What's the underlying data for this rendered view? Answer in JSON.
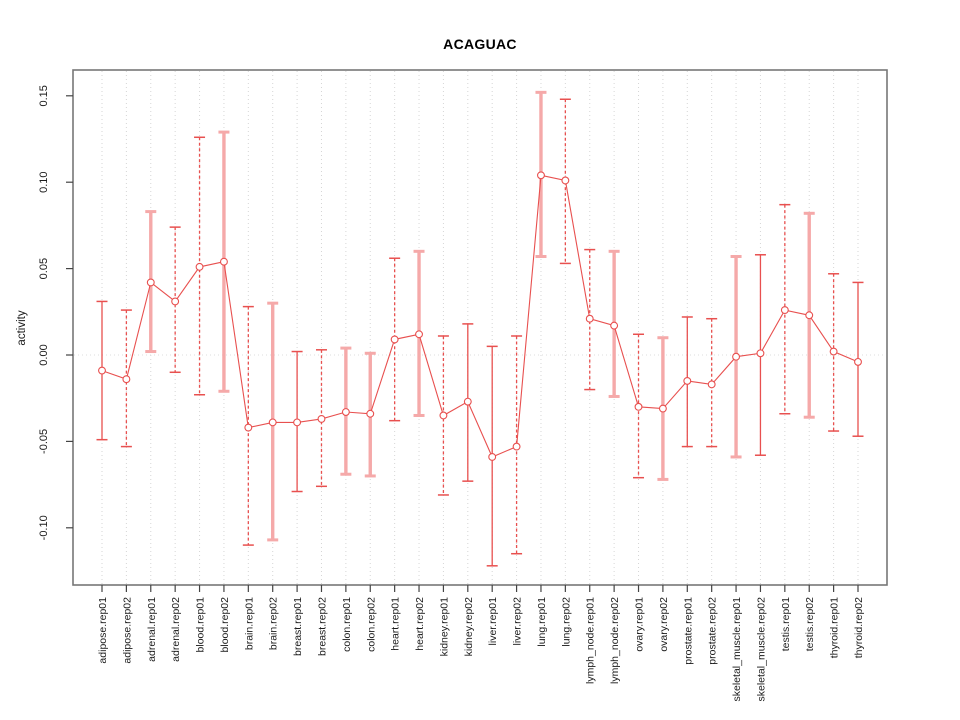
{
  "chart_data": {
    "type": "line",
    "title": "ACAGUAC",
    "ylabel": "activity",
    "xlabel": "",
    "legend": "none",
    "grid": "dotted vertical line per category, dotted horizontal line at 0",
    "y_ticks": [
      "0.15",
      "0.10",
      "0.05",
      "0.00",
      "-0.05",
      "-0.10"
    ],
    "ylim": [
      -0.133,
      0.165
    ],
    "categories": [
      "adipose.rep01",
      "adipose.rep02",
      "adrenal.rep01",
      "adrenal.rep02",
      "blood.rep01",
      "blood.rep02",
      "brain.rep01",
      "brain.rep02",
      "breast.rep01",
      "breast.rep02",
      "colon.rep01",
      "colon.rep02",
      "heart.rep01",
      "heart.rep02",
      "kidney.rep01",
      "kidney.rep02",
      "liver.rep01",
      "liver.rep02",
      "lung.rep01",
      "lung.rep02",
      "lymph_node.rep01",
      "lymph_node.rep02",
      "ovary.rep01",
      "ovary.rep02",
      "prostate.rep01",
      "prostate.rep02",
      "skeletal_muscle.rep01",
      "skeletal_muscle.rep02",
      "testis.rep01",
      "testis.rep02",
      "thyroid.rep01",
      "thyroid.rep02"
    ],
    "values": [
      -0.009,
      -0.014,
      0.042,
      0.031,
      0.051,
      0.054,
      -0.042,
      -0.039,
      -0.039,
      -0.037,
      -0.033,
      -0.034,
      0.009,
      0.012,
      -0.035,
      -0.027,
      -0.059,
      -0.053,
      0.104,
      0.101,
      0.021,
      0.017,
      -0.03,
      -0.031,
      -0.015,
      -0.017,
      -0.001,
      0.001,
      0.026,
      0.023,
      0.002,
      -0.004
    ],
    "error_high": [
      0.031,
      0.026,
      0.083,
      0.074,
      0.126,
      0.129,
      0.028,
      0.03,
      0.002,
      0.003,
      0.004,
      0.001,
      0.056,
      0.06,
      0.011,
      0.018,
      0.005,
      0.011,
      0.152,
      0.148,
      0.061,
      0.06,
      0.012,
      0.01,
      0.022,
      0.021,
      0.057,
      0.058,
      0.087,
      0.082,
      0.047,
      0.042
    ],
    "error_low": [
      -0.049,
      -0.053,
      0.002,
      -0.01,
      -0.023,
      -0.021,
      -0.11,
      -0.107,
      -0.079,
      -0.076,
      -0.069,
      -0.07,
      -0.038,
      -0.035,
      -0.081,
      -0.073,
      -0.122,
      -0.115,
      0.057,
      0.053,
      -0.02,
      -0.024,
      -0.071,
      -0.072,
      -0.053,
      -0.053,
      -0.059,
      -0.058,
      -0.034,
      -0.036,
      -0.044,
      -0.047
    ],
    "bar_styles": [
      "solid",
      "dashed",
      "solid-light",
      "dashed",
      "dashed",
      "solid-light",
      "dashed",
      "solid-light",
      "solid",
      "dashed",
      "solid-light",
      "solid-light",
      "dashed",
      "solid-light",
      "dashed",
      "solid",
      "solid",
      "dashed",
      "solid-light",
      "dashed",
      "dashed",
      "solid-light",
      "dashed",
      "solid-light",
      "solid",
      "dashed",
      "solid-light",
      "solid",
      "dashed",
      "solid-light",
      "dashed",
      "solid"
    ],
    "colors": {
      "series": "#e8504f",
      "series_light": "#f5a9a9",
      "marker_fill": "#ffffff",
      "grid": "#d6d6d6",
      "zero_line": "#dedede",
      "box": "#777777",
      "tick": "#444444",
      "text": "#000000"
    }
  }
}
